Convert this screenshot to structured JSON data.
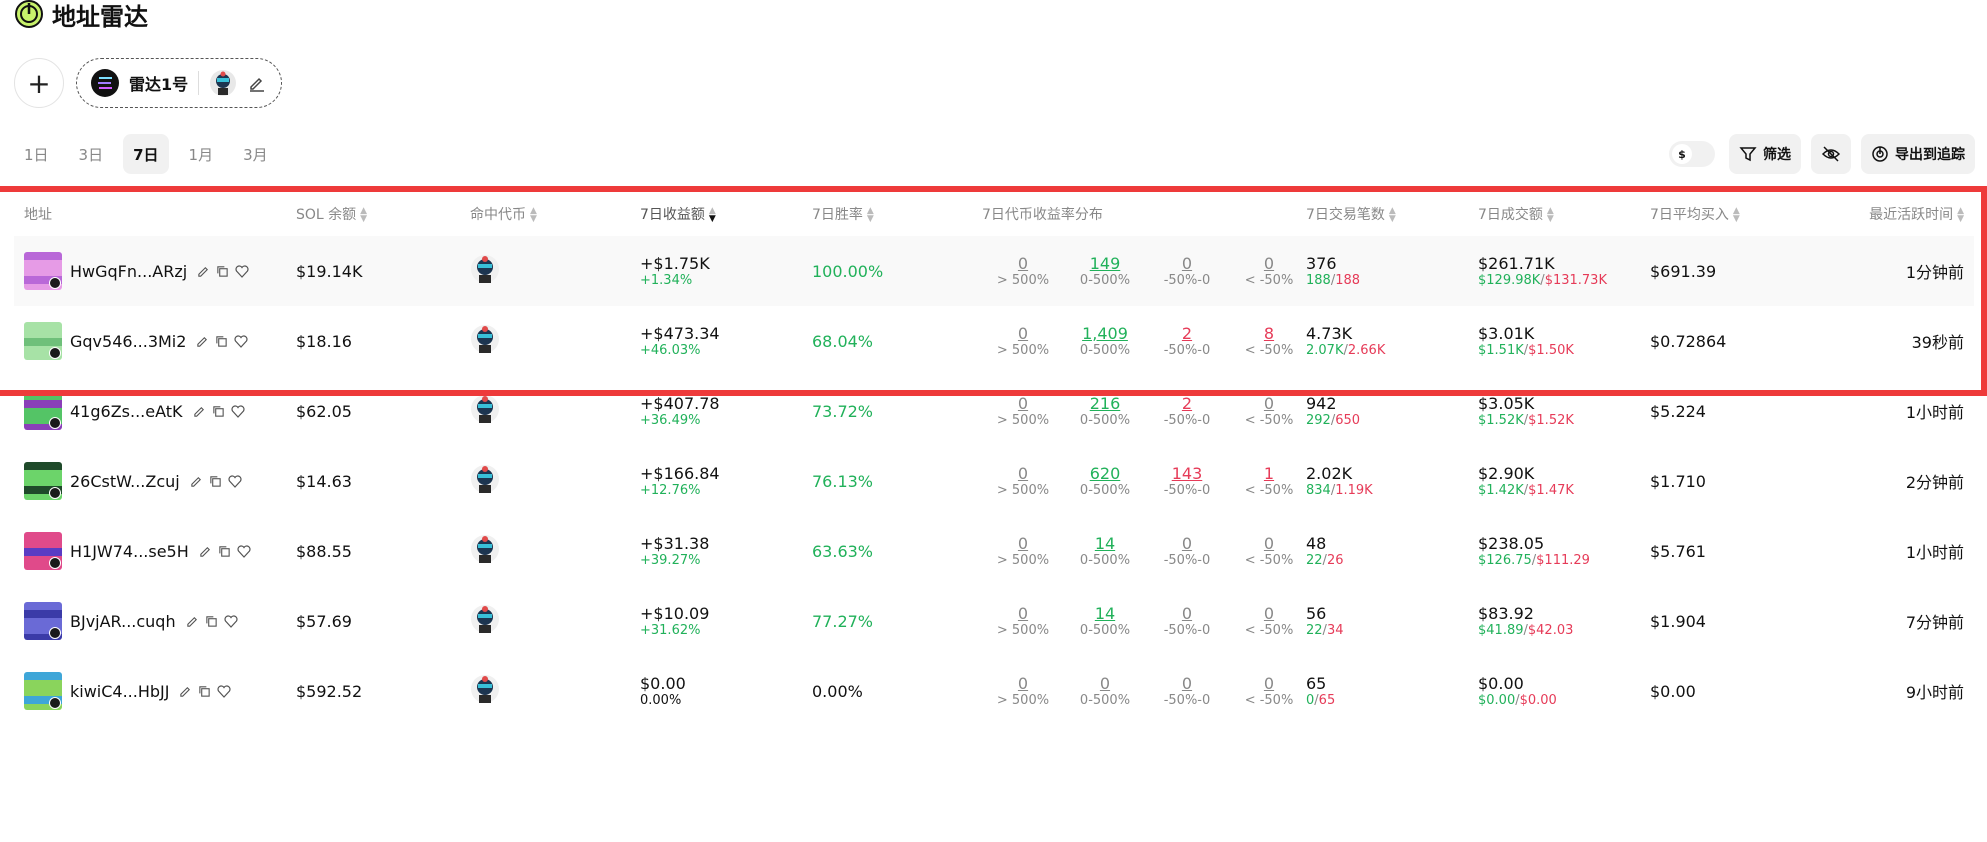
{
  "header": {
    "title": "地址雷达"
  },
  "radar": {
    "add_label": "+",
    "name": "雷达1号"
  },
  "tabs": [
    {
      "label": "1日",
      "active": false
    },
    {
      "label": "3日",
      "active": false
    },
    {
      "label": "7日",
      "active": true
    },
    {
      "label": "1月",
      "active": false
    },
    {
      "label": "3月",
      "active": false
    }
  ],
  "controls": {
    "currency": "$",
    "filter_label": "筛选",
    "export_label": "导出到追踪"
  },
  "columns": {
    "address": "地址",
    "balance": "SOL 余额",
    "hit_tokens": "命中代币",
    "pnl": "7日收益额",
    "win_rate": "7日胜率",
    "distribution": "7日代币收益率分布",
    "txs": "7日交易笔数",
    "volume": "7日成交额",
    "avg_buy": "7日平均买入",
    "last_active": "最近活跃时间"
  },
  "dist_labels": [
    "> 500%",
    "0-500%",
    "-50%-0",
    "< -50%"
  ],
  "rows": [
    {
      "address": "HwGqFn...ARzj",
      "balance": "$19.14K",
      "pnl": "+$1.75K",
      "pnl_pct": "+1.34%",
      "win_rate": "100.00%",
      "dist": [
        "0",
        "149",
        "0",
        "0"
      ],
      "txs": "376",
      "buys": "188",
      "sells": "188",
      "volume": "$261.71K",
      "vol_buy": "$129.98K",
      "vol_sell": "$131.73K",
      "avg_buy": "$691.39",
      "last": "1分钟前",
      "colors": [
        "#b968d8",
        "#e69be6"
      ],
      "highlight": true
    },
    {
      "address": "Gqv546...3Mi2",
      "balance": "$18.16",
      "pnl": "+$473.34",
      "pnl_pct": "+46.03%",
      "win_rate": "68.04%",
      "dist": [
        "0",
        "1,409",
        "2",
        "8"
      ],
      "txs": "4.73K",
      "buys": "2.07K",
      "sells": "2.66K",
      "volume": "$3.01K",
      "vol_buy": "$1.51K",
      "vol_sell": "$1.50K",
      "avg_buy": "$0.72864",
      "last": "39秒前",
      "colors": [
        "#6fc07a",
        "#a7e2a6"
      ],
      "highlight": false
    },
    {
      "address": "41g6Zs...eAtK",
      "balance": "$62.05",
      "pnl": "+$407.78",
      "pnl_pct": "+36.49%",
      "win_rate": "73.72%",
      "dist": [
        "0",
        "216",
        "2",
        "0"
      ],
      "txs": "942",
      "buys": "292",
      "sells": "650",
      "volume": "$3.05K",
      "vol_buy": "$1.52K",
      "vol_sell": "$1.52K",
      "avg_buy": "$5.224",
      "last": "1小时前",
      "colors": [
        "#8a3fb8",
        "#54c466"
      ],
      "highlight": false
    },
    {
      "address": "26CstW...Zcuj",
      "balance": "$14.63",
      "pnl": "+$166.84",
      "pnl_pct": "+12.76%",
      "win_rate": "76.13%",
      "dist": [
        "0",
        "620",
        "143",
        "1"
      ],
      "txs": "2.02K",
      "buys": "834",
      "sells": "1.19K",
      "volume": "$2.90K",
      "vol_buy": "$1.42K",
      "vol_sell": "$1.47K",
      "avg_buy": "$1.710",
      "last": "2分钟前",
      "colors": [
        "#1f4a2a",
        "#6cd46a"
      ],
      "highlight": false
    },
    {
      "address": "H1JW74...se5H",
      "balance": "$88.55",
      "pnl": "+$31.38",
      "pnl_pct": "+39.27%",
      "win_rate": "63.63%",
      "dist": [
        "0",
        "14",
        "0",
        "0"
      ],
      "txs": "48",
      "buys": "22",
      "sells": "26",
      "volume": "$238.05",
      "vol_buy": "$126.75",
      "vol_sell": "$111.29",
      "avg_buy": "$5.761",
      "last": "1小时前",
      "colors": [
        "#5a3cc4",
        "#e04a8a"
      ],
      "highlight": false
    },
    {
      "address": "BJvjAR...cuqh",
      "balance": "$57.69",
      "pnl": "+$10.09",
      "pnl_pct": "+31.62%",
      "win_rate": "77.27%",
      "dist": [
        "0",
        "14",
        "0",
        "0"
      ],
      "txs": "56",
      "buys": "22",
      "sells": "34",
      "volume": "$83.92",
      "vol_buy": "$41.89",
      "vol_sell": "$42.03",
      "avg_buy": "$1.904",
      "last": "7分钟前",
      "colors": [
        "#3b3ba8",
        "#6a6ad6"
      ],
      "highlight": false
    },
    {
      "address": "kiwiC4...HbJJ",
      "balance": "$592.52",
      "pnl": "$0.00",
      "pnl_pct": "0.00%",
      "win_rate": "0.00%",
      "dist": [
        "0",
        "0",
        "0",
        "0"
      ],
      "txs": "65",
      "buys": "0",
      "sells": "65",
      "volume": "$0.00",
      "vol_buy": "$0.00",
      "vol_sell": "$0.00",
      "avg_buy": "$0.00",
      "last": "9小时前",
      "colors": [
        "#3ea6d8",
        "#8ad45c"
      ],
      "highlight": false
    }
  ]
}
